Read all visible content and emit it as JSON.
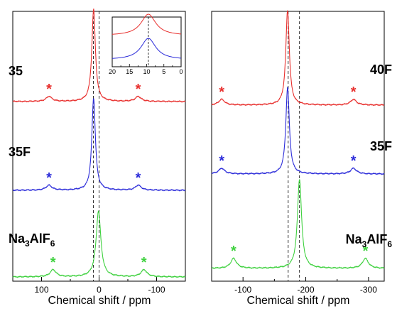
{
  "chart_data": [
    {
      "type": "line",
      "xlabel": "Chemical shift / ppm",
      "ylabel": "",
      "xlim": [
        150,
        -150
      ],
      "xticks": [
        100,
        0,
        -100
      ],
      "reference_lines": [
        10,
        0
      ],
      "series": [
        {
          "label_parts": [
            "35"
          ],
          "color": "#e8312f",
          "center": 9.5,
          "width": 3.0,
          "height": 1.0,
          "ssb_offset": 77.5
        },
        {
          "label_parts": [
            "35F"
          ],
          "color": "#2b2bd9",
          "center": 9.5,
          "width": 3.0,
          "height": 1.0,
          "ssb_offset": 77.5
        },
        {
          "label_parts": [
            "Na",
            "3",
            "AlF",
            "6"
          ],
          "color": "#3fd13f",
          "center": 1.0,
          "width": 4.0,
          "height": 0.82,
          "ssb_offset": 79
        }
      ],
      "inset": {
        "xlim": [
          20,
          0
        ],
        "xticks": [
          20,
          15,
          10,
          5,
          0
        ],
        "reference_line": 9.5,
        "series": [
          {
            "color": "#e8312f",
            "center": 9.5
          },
          {
            "color": "#2b2bd9",
            "center": 9.5
          }
        ]
      }
    },
    {
      "type": "line",
      "xlabel": "Chemical shift / ppm",
      "ylabel": "",
      "xlim": [
        -50,
        -325
      ],
      "xticks": [
        -100,
        -200,
        -300
      ],
      "reference_lines": [
        -172,
        -190
      ],
      "series": [
        {
          "label_parts": [
            "40F"
          ],
          "color": "#e8312f",
          "center": -171,
          "width": 3.0,
          "height": 1.0,
          "ssb_offset": 105
        },
        {
          "label_parts": [
            "35F"
          ],
          "color": "#2b2bd9",
          "center": -171,
          "width": 3.0,
          "height": 1.0,
          "ssb_offset": 105
        },
        {
          "label_parts": [
            "Na",
            "3",
            "AlF",
            "6"
          ],
          "color": "#3fd13f",
          "center": -190,
          "width": 3.5,
          "height": 1.0,
          "ssb_offset": 105
        }
      ]
    }
  ],
  "star_symbol": "*"
}
